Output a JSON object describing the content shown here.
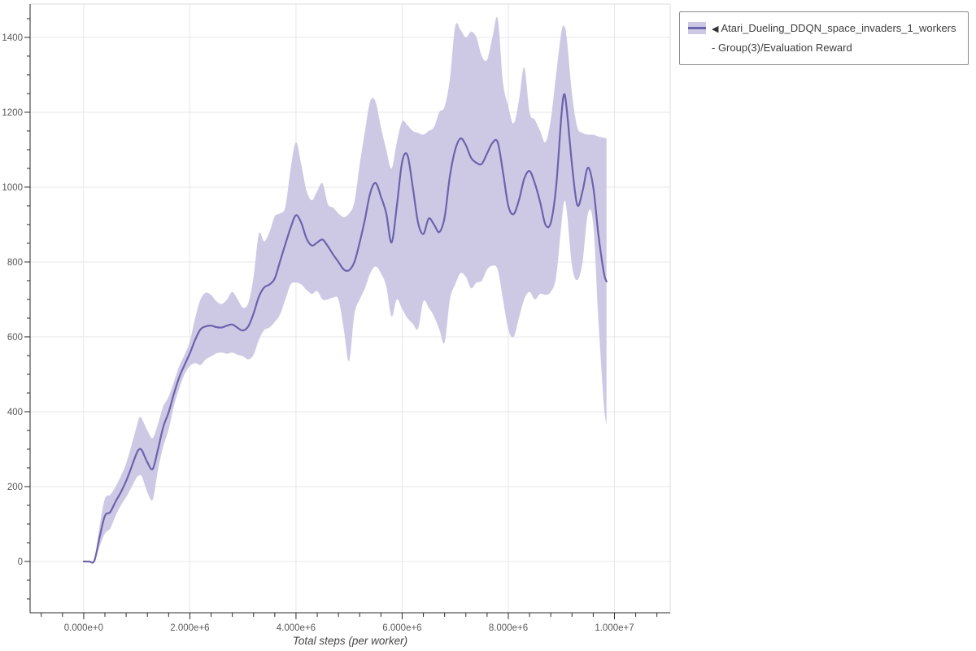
{
  "legend": {
    "marker": "◀",
    "label": "Atari_Dueling_DDQN_space_invaders_1_workers - Group(3)/Evaluation Reward"
  },
  "chart_data": {
    "type": "line",
    "title": "",
    "xlabel": "Total steps (per worker)",
    "ylabel": "",
    "grid": true,
    "legend_position": "top-right",
    "xlim": [
      -1010000,
      11050000
    ],
    "ylim": [
      -137,
      1489
    ],
    "xticks": {
      "values": [
        0,
        2000000,
        4000000,
        6000000,
        8000000,
        10000000
      ],
      "labels": [
        "0.000e+0",
        "2.000e+6",
        "4.000e+6",
        "6.000e+6",
        "8.000e+6",
        "1.000e+7"
      ]
    },
    "yticks": {
      "values": [
        0,
        200,
        400,
        600,
        800,
        1000,
        1200,
        1400
      ],
      "labels": [
        "0",
        "200",
        "400",
        "600",
        "800",
        "1000",
        "1200",
        "1400"
      ]
    },
    "x_minor_step": 400000,
    "y_minor_step": 50,
    "colors": {
      "line": "#6b63ac",
      "band": "#cdc9e5",
      "grid": "#e7e7e7",
      "frame": "#dedede",
      "axis": "#2b2b2b",
      "tick_label": "#5a5a5a"
    },
    "series": [
      {
        "name": "Atari_Dueling_DDQN_space_invaders_1_workers - Group(3)/Evaluation Reward",
        "x": [
          0,
          100000,
          200000,
          300000,
          400000,
          500000,
          600000,
          700000,
          800000,
          900000,
          1000000,
          1050000,
          1100000,
          1200000,
          1300000,
          1400000,
          1500000,
          1600000,
          1700000,
          1800000,
          1900000,
          2000000,
          2100000,
          2200000,
          2300000,
          2400000,
          2500000,
          2600000,
          2700000,
          2800000,
          2900000,
          3000000,
          3100000,
          3200000,
          3300000,
          3400000,
          3500000,
          3600000,
          3700000,
          3800000,
          3900000,
          4000000,
          4100000,
          4200000,
          4300000,
          4400000,
          4500000,
          4600000,
          4700000,
          4800000,
          4900000,
          5000000,
          5100000,
          5200000,
          5300000,
          5400000,
          5500000,
          5600000,
          5700000,
          5800000,
          5900000,
          6000000,
          6100000,
          6200000,
          6300000,
          6400000,
          6500000,
          6600000,
          6700000,
          6800000,
          6900000,
          7000000,
          7100000,
          7200000,
          7300000,
          7400000,
          7500000,
          7600000,
          7700000,
          7800000,
          7900000,
          8000000,
          8100000,
          8200000,
          8300000,
          8400000,
          8500000,
          8600000,
          8700000,
          8800000,
          8900000,
          9000000,
          9050000,
          9100000,
          9200000,
          9300000,
          9400000,
          9500000,
          9600000,
          9700000,
          9800000,
          9850000
        ],
        "mean": [
          0,
          0,
          2,
          65,
          122,
          132,
          160,
          185,
          215,
          252,
          290,
          300,
          296,
          265,
          247,
          300,
          360,
          398,
          448,
          492,
          525,
          556,
          592,
          620,
          628,
          630,
          626,
          625,
          630,
          633,
          624,
          617,
          628,
          662,
          707,
          732,
          740,
          756,
          802,
          848,
          892,
          925,
          904,
          862,
          844,
          852,
          860,
          842,
          820,
          800,
          780,
          778,
          800,
          852,
          915,
          985,
          1011,
          975,
          930,
          852,
          950,
          1068,
          1085,
          1000,
          905,
          875,
          916,
          900,
          880,
          920,
          1030,
          1100,
          1130,
          1112,
          1078,
          1065,
          1062,
          1090,
          1118,
          1120,
          1040,
          950,
          928,
          965,
          1022,
          1043,
          1010,
          960,
          900,
          905,
          1000,
          1190,
          1248,
          1210,
          1060,
          952,
          990,
          1052,
          1000,
          870,
          772,
          748
        ],
        "band_low": [
          0,
          0,
          0,
          40,
          75,
          88,
          122,
          150,
          172,
          198,
          225,
          230,
          226,
          185,
          165,
          245,
          308,
          352,
          415,
          462,
          500,
          522,
          530,
          525,
          540,
          548,
          556,
          558,
          555,
          558,
          552,
          548,
          540,
          552,
          592,
          618,
          625,
          640,
          660,
          700,
          740,
          745,
          740,
          725,
          715,
          722,
          700,
          700,
          705,
          700,
          620,
          535,
          660,
          700,
          730,
          770,
          788,
          770,
          735,
          655,
          700,
          675,
          650,
          635,
          622,
          695,
          678,
          655,
          620,
          585,
          700,
          740,
          770,
          760,
          730,
          745,
          750,
          780,
          790,
          780,
          700,
          620,
          600,
          650,
          700,
          720,
          700,
          715,
          712,
          720,
          760,
          900,
          960,
          940,
          790,
          752,
          800,
          930,
          900,
          640,
          420,
          365
        ],
        "band_high": [
          0,
          0,
          5,
          95,
          168,
          178,
          200,
          228,
          262,
          310,
          362,
          385,
          380,
          350,
          330,
          368,
          415,
          440,
          480,
          522,
          552,
          588,
          650,
          700,
          718,
          712,
          695,
          688,
          700,
          720,
          700,
          678,
          690,
          760,
          875,
          855,
          880,
          922,
          930,
          948,
          1050,
          1120,
          1060,
          990,
          965,
          990,
          1010,
          955,
          945,
          930,
          920,
          930,
          960,
          1060,
          1150,
          1230,
          1228,
          1160,
          1100,
          1050,
          1120,
          1175,
          1165,
          1150,
          1145,
          1140,
          1150,
          1160,
          1200,
          1215,
          1290,
          1430,
          1420,
          1400,
          1415,
          1400,
          1350,
          1340,
          1400,
          1450,
          1280,
          1215,
          1170,
          1230,
          1320,
          1200,
          1180,
          1150,
          1120,
          1180,
          1300,
          1415,
          1430,
          1400,
          1250,
          1160,
          1145,
          1140,
          1140,
          1135,
          1132,
          1130
        ]
      }
    ]
  }
}
